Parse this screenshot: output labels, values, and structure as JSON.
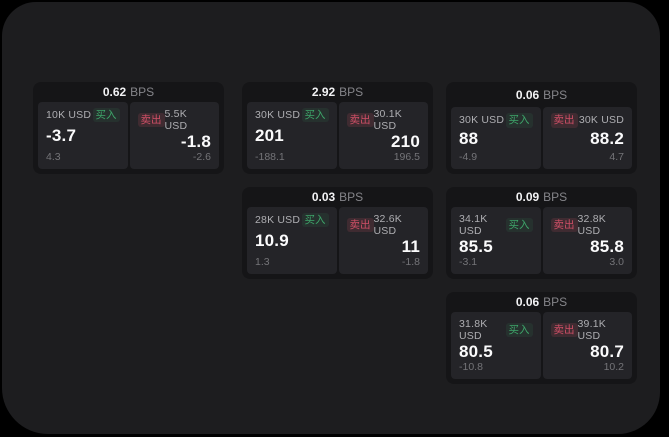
{
  "labels": {
    "bps_unit": "BPS",
    "buy": "买入",
    "sell": "卖出"
  },
  "colors": {
    "buy_green": "#3ea56a",
    "sell_red": "#cf4f66",
    "panel_bg": "#1d1d1f",
    "card_bg": "#151517",
    "cell_bg": "#242428"
  },
  "cards": [
    {
      "bps": "0.62",
      "buy": {
        "amount": "10K USD",
        "value": "-3.7",
        "sub": "4.3"
      },
      "sell": {
        "amount": "5.5K USD",
        "value": "-1.8",
        "sub": "-2.6"
      }
    },
    {
      "bps": "2.92",
      "buy": {
        "amount": "30K USD",
        "value": "201",
        "sub": "-188.1"
      },
      "sell": {
        "amount": "30.1K USD",
        "value": "210",
        "sub": "196.5"
      }
    },
    {
      "bps": "0.06",
      "buy": {
        "amount": "30K USD",
        "value": "88",
        "sub": "-4.9"
      },
      "sell": {
        "amount": "30K USD",
        "value": "88.2",
        "sub": "4.7"
      }
    },
    {
      "bps": "0.03",
      "buy": {
        "amount": "28K USD",
        "value": "10.9",
        "sub": "1.3"
      },
      "sell": {
        "amount": "32.6K USD",
        "value": "11",
        "sub": "-1.8"
      }
    },
    {
      "bps": "0.09",
      "buy": {
        "amount": "34.1K USD",
        "value": "85.5",
        "sub": "-3.1"
      },
      "sell": {
        "amount": "32.8K USD",
        "value": "85.8",
        "sub": "3.0"
      }
    },
    {
      "bps": "0.06",
      "buy": {
        "amount": "31.8K USD",
        "value": "80.5",
        "sub": "-10.8"
      },
      "sell": {
        "amount": "39.1K USD",
        "value": "80.7",
        "sub": "10.2"
      }
    }
  ]
}
